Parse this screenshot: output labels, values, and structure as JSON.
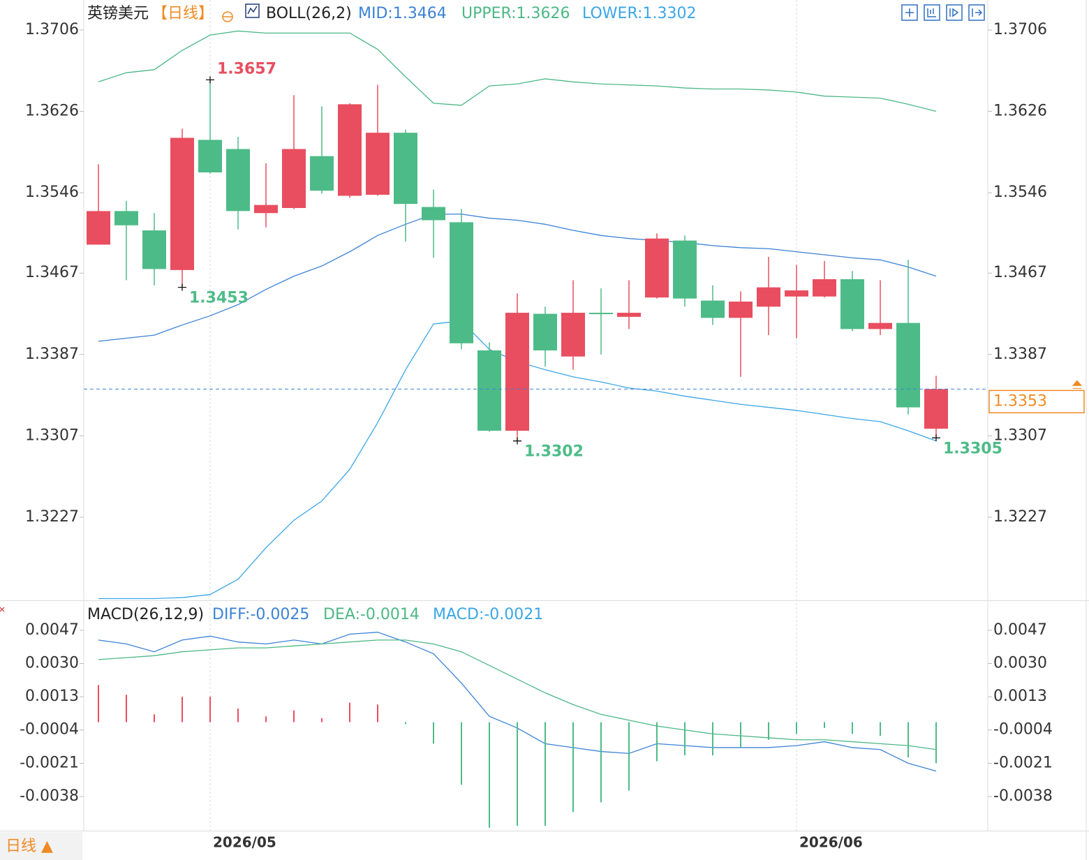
{
  "chart_data": [
    {
      "type": "candlestick",
      "title": "英镑美元",
      "subtitle": "【日线】",
      "indicator": "BOLL(26,2)",
      "categories": [
        null,
        null,
        null,
        null,
        "2026/05",
        null,
        null,
        null,
        null,
        null,
        null,
        null,
        null,
        null,
        null,
        null,
        null,
        null,
        null,
        null,
        null,
        null,
        null,
        null,
        null,
        "2026/06",
        null,
        null,
        null,
        null,
        null
      ],
      "open": [
        1.3495,
        1.3528,
        1.3509,
        1.347,
        1.3598,
        1.3589,
        1.3526,
        1.3531,
        1.3582,
        1.3543,
        1.3544,
        1.3605,
        1.3532,
        1.3517,
        1.3391,
        1.3312,
        1.3427,
        1.3385,
        1.3428,
        1.3424,
        1.3443,
        1.3499,
        1.344,
        1.3423,
        1.3434,
        1.3444,
        1.3444,
        1.3461,
        1.3412,
        1.3418,
        1.3314
      ],
      "high": [
        1.3574,
        1.3538,
        1.3526,
        1.3609,
        1.3657,
        1.3601,
        1.3575,
        1.3642,
        1.3631,
        1.3634,
        1.3652,
        1.3608,
        1.3549,
        1.353,
        1.3399,
        1.3447,
        1.3434,
        1.346,
        1.3452,
        1.346,
        1.3506,
        1.3504,
        1.3455,
        1.3449,
        1.3483,
        1.3475,
        1.3479,
        1.3469,
        1.346,
        1.348,
        1.3366
      ],
      "low": [
        1.3495,
        1.346,
        1.3455,
        1.3453,
        1.3565,
        1.351,
        1.3512,
        1.353,
        1.3545,
        1.3541,
        1.3543,
        1.3498,
        1.3482,
        1.3392,
        1.3311,
        1.3302,
        1.3375,
        1.3372,
        1.3387,
        1.3412,
        1.3442,
        1.3434,
        1.3416,
        1.3365,
        1.3406,
        1.3403,
        1.3443,
        1.341,
        1.3406,
        1.3328,
        1.3305
      ],
      "close": [
        1.3528,
        1.3514,
        1.3471,
        1.36,
        1.3566,
        1.3528,
        1.3534,
        1.3589,
        1.3548,
        1.3633,
        1.3605,
        1.3535,
        1.3519,
        1.3398,
        1.3312,
        1.3428,
        1.3391,
        1.3428,
        1.3427,
        1.3428,
        1.3501,
        1.3442,
        1.3423,
        1.3439,
        1.3453,
        1.345,
        1.3461,
        1.3412,
        1.3418,
        1.3335,
        1.3353
      ],
      "up_color": "#e84e5f",
      "down_color": "#4dbb87",
      "series": [
        {
          "label": "MID:1.3464",
          "color": "#3b82d6",
          "values": [
            1.34,
            1.3403,
            1.3406,
            1.3416,
            1.3425,
            1.3436,
            1.3451,
            1.3464,
            1.3474,
            1.3488,
            1.3504,
            1.3515,
            1.3525,
            1.3525,
            1.3521,
            1.3519,
            1.3515,
            1.3509,
            1.3504,
            1.3501,
            1.3499,
            1.3497,
            1.3494,
            1.3492,
            1.3491,
            1.3488,
            1.3485,
            1.3482,
            1.348,
            1.3473,
            1.3464
          ]
        },
        {
          "label": "UPPER:1.3626",
          "color": "#4cb885",
          "values": [
            1.3655,
            1.3664,
            1.3667,
            1.3686,
            1.3701,
            1.3705,
            1.3703,
            1.3703,
            1.3703,
            1.3703,
            1.3687,
            1.366,
            1.3634,
            1.3632,
            1.3651,
            1.3653,
            1.3658,
            1.3655,
            1.3653,
            1.3652,
            1.3651,
            1.3649,
            1.3648,
            1.3648,
            1.3647,
            1.3645,
            1.3641,
            1.364,
            1.3639,
            1.3633,
            1.3626
          ]
        },
        {
          "label": "LOWER:1.3302",
          "color": "#3aa6e6",
          "values": [
            1.3147,
            1.3147,
            1.3147,
            1.3148,
            1.3151,
            1.3166,
            1.3197,
            1.3224,
            1.3243,
            1.3274,
            1.332,
            1.3372,
            1.3417,
            1.342,
            1.3392,
            1.338,
            1.3372,
            1.3365,
            1.336,
            1.3354,
            1.3351,
            1.3346,
            1.3342,
            1.3338,
            1.3335,
            1.3332,
            1.3328,
            1.3324,
            1.3321,
            1.3312,
            1.3302
          ]
        }
      ],
      "annotations": [
        {
          "text": "1.3657"
        },
        {
          "text": "1.3453"
        },
        {
          "text": "1.3302"
        },
        {
          "text": "1.3305"
        }
      ],
      "last_price_label": "1.3353",
      "last_price_color": "#f08a24",
      "ylim": [
        1.31453,
        1.37355
      ],
      "yticks": [
        1.3706,
        1.3626,
        1.3546,
        1.3467,
        1.3387,
        1.3307,
        1.3227
      ]
    },
    {
      "type": "macd",
      "title": "MACD(26,12,9)",
      "up_color": "#e84e5f",
      "down_color": "#4dbb87",
      "series": [
        {
          "label": "DIFF:-0.0025",
          "color": "#3b82d6",
          "style": "line",
          "values": [
            0.0042,
            0.004,
            0.0036,
            0.0042,
            0.0044,
            0.0041,
            0.004,
            0.0042,
            0.004,
            0.0045,
            0.0046,
            0.0041,
            0.0035,
            0.002,
            0.0003,
            -0.0003,
            -0.0011,
            -0.0013,
            -0.0015,
            -0.0016,
            -0.0011,
            -0.0012,
            -0.0013,
            -0.0013,
            -0.0013,
            -0.0012,
            -0.001,
            -0.0013,
            -0.0014,
            -0.0021,
            -0.0025
          ]
        },
        {
          "label": "DEA:-0.0014",
          "color": "#4cb885",
          "style": "line",
          "values": [
            0.0032,
            0.0033,
            0.0034,
            0.0036,
            0.0037,
            0.0038,
            0.0038,
            0.0039,
            0.004,
            0.0041,
            0.0042,
            0.0042,
            0.004,
            0.0036,
            0.0029,
            0.0022,
            0.0015,
            0.0009,
            0.0004,
            0.0001,
            -0.0002,
            -0.0004,
            -0.0006,
            -0.0007,
            -0.0008,
            -0.0009,
            -0.0009,
            -0.001,
            -0.0011,
            -0.0012,
            -0.0014
          ]
        },
        {
          "label": "MACD:-0.0021",
          "color": "#3aa6e6",
          "style": "histogram",
          "values": [
            0.0019,
            0.0014,
            0.0004,
            0.0013,
            0.0013,
            0.0007,
            0.0003,
            0.0006,
            0.0002,
            0.001,
            0.0009,
            -0.0001,
            -0.0011,
            -0.0032,
            -0.0054,
            -0.0053,
            -0.0053,
            -0.0046,
            -0.0041,
            -0.0035,
            -0.002,
            -0.0017,
            -0.0017,
            -0.0013,
            -0.0009,
            -0.0006,
            -0.0003,
            -0.0006,
            -0.0007,
            -0.0018,
            -0.0021
          ]
        }
      ],
      "ylim": [
        -0.00555,
        0.00616
      ],
      "yticks": [
        0.0047,
        {
          "value": 0.003,
          "label": "0.0030"
        },
        0.0013,
        -0.0004,
        -0.0021,
        -0.0038
      ]
    }
  ],
  "footer": {
    "period_button": "日线 ▲"
  }
}
